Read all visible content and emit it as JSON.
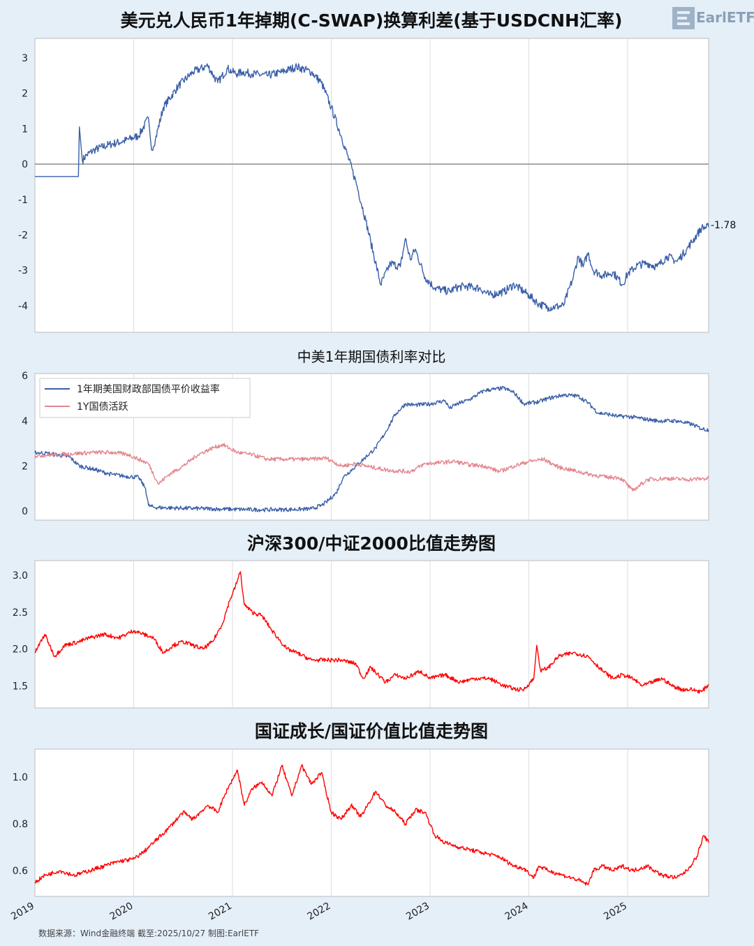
{
  "logo": {
    "text": "EarlETF"
  },
  "footer": {
    "source": "数据来源：Wind金融终端 截至:2025/10/27 制图:EarlETF"
  },
  "x_axis": {
    "ticks": [
      "2019",
      "2020",
      "2021",
      "2022",
      "2023",
      "2024",
      "2025"
    ]
  },
  "colors": {
    "blue": "#3a5fa8",
    "pink": "#e4868e",
    "red": "#ff0000",
    "zero_line": "#808080",
    "grid": "#dddddd"
  },
  "chart_data": [
    {
      "type": "line",
      "title": "美元兑人民币1年掉期(C-SWAP)换算利差(基于USDCNH汇率)",
      "ylim": [
        -4.75,
        3.55
      ],
      "yticks": [
        "3",
        "2",
        "1",
        "0",
        "-1",
        "-2",
        "-3",
        "-4"
      ],
      "end_label": "-1.78",
      "series": [
        {
          "color": "#3a5fa8",
          "x": [
            2019.0,
            2019.44,
            2019.45,
            2019.48,
            2019.52,
            2019.6,
            2019.75,
            2019.9,
            2020.05,
            2020.15,
            2020.18,
            2020.22,
            2020.3,
            2020.45,
            2020.6,
            2020.75,
            2020.85,
            2020.95,
            2021.0,
            2021.05,
            2021.1,
            2021.2,
            2021.35,
            2021.5,
            2021.65,
            2021.8,
            2021.9,
            2022.0,
            2022.1,
            2022.25,
            2022.35,
            2022.4,
            2022.5,
            2022.6,
            2022.7,
            2022.75,
            2022.8,
            2022.85,
            2022.95,
            2023.05,
            2023.12,
            2023.2,
            2023.25,
            2023.35,
            2023.5,
            2023.6,
            2023.75,
            2023.85,
            2024.0,
            2024.1,
            2024.2,
            2024.35,
            2024.45,
            2024.5,
            2024.55,
            2024.6,
            2024.65,
            2024.75,
            2024.85,
            2024.95,
            2025.0,
            2025.1,
            2025.2,
            2025.3,
            2025.4,
            2025.5,
            2025.6,
            2025.7,
            2025.75,
            2025.82
          ],
          "y": [
            -0.35,
            -0.35,
            1.05,
            0.1,
            0.25,
            0.4,
            0.55,
            0.65,
            0.8,
            1.3,
            0.4,
            0.7,
            1.6,
            2.2,
            2.6,
            2.78,
            2.3,
            2.7,
            2.6,
            2.55,
            2.6,
            2.55,
            2.5,
            2.6,
            2.75,
            2.6,
            2.3,
            1.6,
            0.8,
            -0.5,
            -1.6,
            -2.2,
            -3.4,
            -2.8,
            -2.9,
            -2.1,
            -2.7,
            -2.4,
            -3.2,
            -3.5,
            -3.55,
            -3.6,
            -3.5,
            -3.45,
            -3.5,
            -3.7,
            -3.6,
            -3.4,
            -3.7,
            -3.95,
            -4.05,
            -4.0,
            -3.2,
            -2.6,
            -2.9,
            -2.5,
            -3.0,
            -3.15,
            -3.05,
            -3.4,
            -3.1,
            -2.85,
            -2.8,
            -2.9,
            -2.6,
            -2.75,
            -2.4,
            -2.0,
            -1.8,
            -1.78
          ]
        }
      ]
    },
    {
      "type": "line",
      "title": "中美1年期国债利率对比",
      "ylim": [
        -0.4,
        6.1
      ],
      "yticks": [
        "6",
        "4",
        "2",
        "0"
      ],
      "legend_placement": "top-left",
      "series": [
        {
          "name": "1年期美国财政部国债平价收益率",
          "color": "#3a5fa8",
          "x": [
            2019.0,
            2019.15,
            2019.35,
            2019.45,
            2019.6,
            2019.75,
            2019.9,
            2020.05,
            2020.12,
            2020.15,
            2020.2,
            2020.3,
            2020.5,
            2020.8,
            2021.0,
            2021.3,
            2021.6,
            2021.8,
            2021.9,
            2021.95,
            2022.05,
            2022.12,
            2022.25,
            2022.35,
            2022.45,
            2022.55,
            2022.65,
            2022.75,
            2022.85,
            2023.0,
            2023.15,
            2023.2,
            2023.25,
            2023.4,
            2023.55,
            2023.65,
            2023.75,
            2023.85,
            2023.95,
            2024.1,
            2024.2,
            2024.35,
            2024.5,
            2024.6,
            2024.7,
            2024.8,
            2024.9,
            2025.0,
            2025.15,
            2025.3,
            2025.5,
            2025.65,
            2025.75,
            2025.82
          ],
          "y": [
            2.6,
            2.55,
            2.4,
            2.0,
            1.85,
            1.65,
            1.55,
            1.5,
            1.0,
            0.25,
            0.17,
            0.15,
            0.13,
            0.1,
            0.08,
            0.06,
            0.07,
            0.1,
            0.25,
            0.4,
            0.8,
            1.5,
            2.0,
            2.4,
            2.8,
            3.5,
            4.3,
            4.75,
            4.7,
            4.75,
            4.9,
            4.55,
            4.7,
            4.95,
            5.35,
            5.4,
            5.45,
            5.25,
            4.75,
            4.85,
            5.0,
            5.15,
            5.1,
            4.8,
            4.35,
            4.3,
            4.2,
            4.2,
            4.1,
            4.0,
            4.0,
            3.85,
            3.65,
            3.6
          ]
        },
        {
          "name": "1Y国债活跃",
          "color": "#e4868e",
          "x": [
            2019.0,
            2019.2,
            2019.4,
            2019.6,
            2019.8,
            2019.95,
            2020.05,
            2020.15,
            2020.25,
            2020.35,
            2020.5,
            2020.65,
            2020.8,
            2020.9,
            2021.05,
            2021.2,
            2021.35,
            2021.5,
            2021.65,
            2021.8,
            2021.95,
            2022.1,
            2022.25,
            2022.4,
            2022.6,
            2022.8,
            2022.95,
            2023.1,
            2023.25,
            2023.4,
            2023.55,
            2023.7,
            2023.85,
            2024.0,
            2024.15,
            2024.3,
            2024.5,
            2024.65,
            2024.8,
            2024.9,
            2024.95,
            2025.05,
            2025.2,
            2025.4,
            2025.6,
            2025.82
          ],
          "y": [
            2.45,
            2.5,
            2.55,
            2.6,
            2.6,
            2.5,
            2.3,
            2.1,
            1.2,
            1.6,
            2.0,
            2.5,
            2.8,
            2.95,
            2.6,
            2.5,
            2.3,
            2.3,
            2.3,
            2.3,
            2.35,
            2.0,
            2.1,
            1.95,
            1.8,
            1.75,
            2.1,
            2.15,
            2.2,
            2.05,
            2.0,
            1.75,
            2.0,
            2.2,
            2.3,
            1.95,
            1.75,
            1.6,
            1.5,
            1.5,
            1.4,
            0.9,
            1.4,
            1.45,
            1.4,
            1.45
          ]
        }
      ]
    },
    {
      "type": "line",
      "title": "沪深300/中证2000比值走势图",
      "ylim": [
        1.2,
        3.2
      ],
      "yticks": [
        "3.0",
        "2.5",
        "2.0",
        "1.5"
      ],
      "series": [
        {
          "color": "#ff0000",
          "x": [
            2019.0,
            2019.1,
            2019.2,
            2019.3,
            2019.45,
            2019.55,
            2019.7,
            2019.85,
            2020.0,
            2020.1,
            2020.2,
            2020.3,
            2020.4,
            2020.5,
            2020.6,
            2020.7,
            2020.8,
            2020.9,
            2020.97,
            2021.03,
            2021.08,
            2021.12,
            2021.2,
            2021.3,
            2021.4,
            2021.55,
            2021.65,
            2021.8,
            2021.95,
            2022.1,
            2022.25,
            2022.32,
            2022.4,
            2022.55,
            2022.65,
            2022.75,
            2022.9,
            2023.0,
            2023.15,
            2023.3,
            2023.45,
            2023.6,
            2023.75,
            2023.88,
            2023.95,
            2024.05,
            2024.08,
            2024.12,
            2024.2,
            2024.3,
            2024.45,
            2024.6,
            2024.75,
            2024.85,
            2024.95,
            2025.05,
            2025.15,
            2025.25,
            2025.35,
            2025.45,
            2025.55,
            2025.65,
            2025.75,
            2025.82
          ],
          "y": [
            1.95,
            2.2,
            1.9,
            2.05,
            2.1,
            2.15,
            2.2,
            2.15,
            2.25,
            2.2,
            2.15,
            1.95,
            2.05,
            2.1,
            2.05,
            2.0,
            2.1,
            2.35,
            2.65,
            2.85,
            3.05,
            2.6,
            2.5,
            2.45,
            2.25,
            2.0,
            1.95,
            1.85,
            1.85,
            1.85,
            1.8,
            1.6,
            1.75,
            1.55,
            1.65,
            1.6,
            1.7,
            1.6,
            1.65,
            1.55,
            1.6,
            1.6,
            1.5,
            1.45,
            1.45,
            1.6,
            2.05,
            1.7,
            1.75,
            1.9,
            1.95,
            1.9,
            1.7,
            1.6,
            1.65,
            1.6,
            1.5,
            1.55,
            1.6,
            1.5,
            1.45,
            1.45,
            1.42,
            1.52
          ]
        }
      ]
    },
    {
      "type": "line",
      "title": "国证成长/国证价值比值走势图",
      "ylim": [
        0.49,
        1.12
      ],
      "yticks": [
        "1.0",
        "0.8",
        "0.6"
      ],
      "series": [
        {
          "color": "#ff0000",
          "x": [
            2019.0,
            2019.1,
            2019.25,
            2019.4,
            2019.55,
            2019.7,
            2019.85,
            2020.0,
            2020.1,
            2020.2,
            2020.35,
            2020.5,
            2020.6,
            2020.75,
            2020.85,
            2020.95,
            2021.05,
            2021.12,
            2021.2,
            2021.3,
            2021.4,
            2021.5,
            2021.6,
            2021.7,
            2021.8,
            2021.9,
            2022.0,
            2022.1,
            2022.2,
            2022.3,
            2022.45,
            2022.55,
            2022.65,
            2022.75,
            2022.85,
            2022.95,
            2023.05,
            2023.15,
            2023.3,
            2023.5,
            2023.7,
            2023.85,
            2023.95,
            2024.05,
            2024.1,
            2024.2,
            2024.35,
            2024.5,
            2024.6,
            2024.65,
            2024.75,
            2024.85,
            2024.95,
            2025.05,
            2025.2,
            2025.35,
            2025.5,
            2025.6,
            2025.7,
            2025.77,
            2025.82
          ],
          "y": [
            0.55,
            0.58,
            0.6,
            0.58,
            0.6,
            0.62,
            0.64,
            0.65,
            0.68,
            0.72,
            0.78,
            0.85,
            0.82,
            0.88,
            0.85,
            0.95,
            1.03,
            0.88,
            0.95,
            0.98,
            0.92,
            1.05,
            0.92,
            1.05,
            0.97,
            1.02,
            0.85,
            0.82,
            0.88,
            0.83,
            0.94,
            0.88,
            0.85,
            0.8,
            0.86,
            0.85,
            0.75,
            0.72,
            0.7,
            0.68,
            0.66,
            0.62,
            0.61,
            0.57,
            0.62,
            0.6,
            0.58,
            0.56,
            0.54,
            0.6,
            0.62,
            0.6,
            0.62,
            0.6,
            0.62,
            0.58,
            0.57,
            0.6,
            0.66,
            0.75,
            0.72
          ]
        }
      ]
    }
  ]
}
